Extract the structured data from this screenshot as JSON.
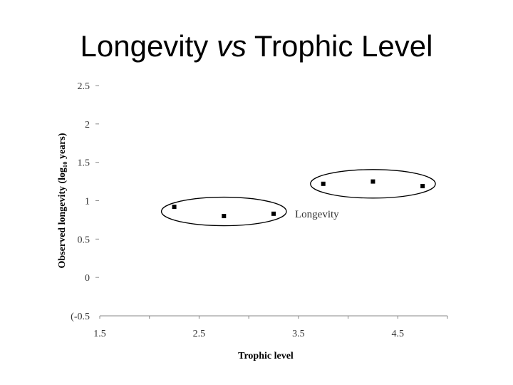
{
  "title": {
    "part1": "Longevity ",
    "part2": "vs",
    "part3": " Trophic Level"
  },
  "chart_data": {
    "type": "scatter",
    "xlabel": "Trophic level",
    "ylabel": "Observed longevity (log₁₀ years)",
    "xlim": [
      1.5,
      5.0
    ],
    "ylim": [
      -0.5,
      2.5
    ],
    "xticks": [
      "1.5",
      "2.5",
      "3.5",
      "4.5"
    ],
    "yticks": [
      "2.5",
      "2",
      "1.5",
      "1",
      "0.5",
      "0",
      "(-0.5"
    ],
    "grid": false,
    "legend_position": "right",
    "series": [
      {
        "name": "Longevity",
        "color": "#000000",
        "points": [
          {
            "x": 2.25,
            "y": 0.92
          },
          {
            "x": 2.75,
            "y": 0.8
          },
          {
            "x": 3.25,
            "y": 0.83
          },
          {
            "x": 3.75,
            "y": 1.22
          },
          {
            "x": 4.25,
            "y": 1.25
          },
          {
            "x": 4.75,
            "y": 1.19
          }
        ]
      }
    ],
    "groupings": [
      {
        "x_from": 2.25,
        "x_to": 3.25,
        "y": 0.86
      },
      {
        "x_from": 3.75,
        "x_to": 4.75,
        "y": 1.22
      }
    ]
  }
}
